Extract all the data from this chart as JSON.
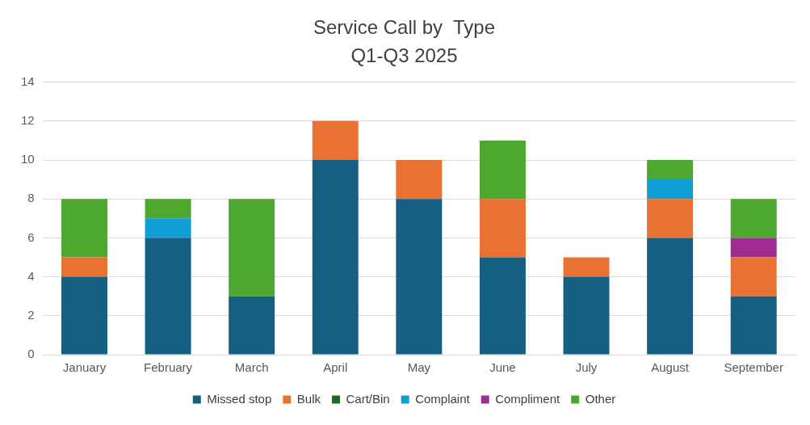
{
  "chart_data": {
    "type": "bar",
    "title": "Service Call by  Type",
    "subtitle": "Q1-Q3 2025",
    "categories": [
      "January",
      "February",
      "March",
      "April",
      "May",
      "June",
      "July",
      "August",
      "September"
    ],
    "stacked": true,
    "ylim": [
      0,
      14
    ],
    "yticks": [
      0,
      2,
      4,
      6,
      8,
      10,
      12,
      14
    ],
    "grid": "y",
    "legend": "bottom",
    "series": [
      {
        "name": "Missed stop",
        "color": "#156082",
        "values": [
          4,
          6,
          3,
          10,
          8,
          5,
          4,
          6,
          3
        ]
      },
      {
        "name": "Bulk",
        "color": "#e97132",
        "values": [
          1,
          0,
          0,
          2,
          2,
          3,
          1,
          2,
          2
        ]
      },
      {
        "name": "Cart/Bin",
        "color": "#196b24",
        "values": [
          0,
          0,
          0,
          0,
          0,
          0,
          0,
          0,
          0
        ]
      },
      {
        "name": "Complaint",
        "color": "#0f9ed5",
        "values": [
          0,
          1,
          0,
          0,
          0,
          0,
          0,
          1,
          0
        ]
      },
      {
        "name": "Compliment",
        "color": "#a02b93",
        "values": [
          0,
          0,
          0,
          0,
          0,
          0,
          0,
          0,
          1
        ]
      },
      {
        "name": "Other",
        "color": "#4ea72e",
        "values": [
          3,
          1,
          5,
          0,
          0,
          3,
          0,
          1,
          2
        ]
      }
    ]
  }
}
